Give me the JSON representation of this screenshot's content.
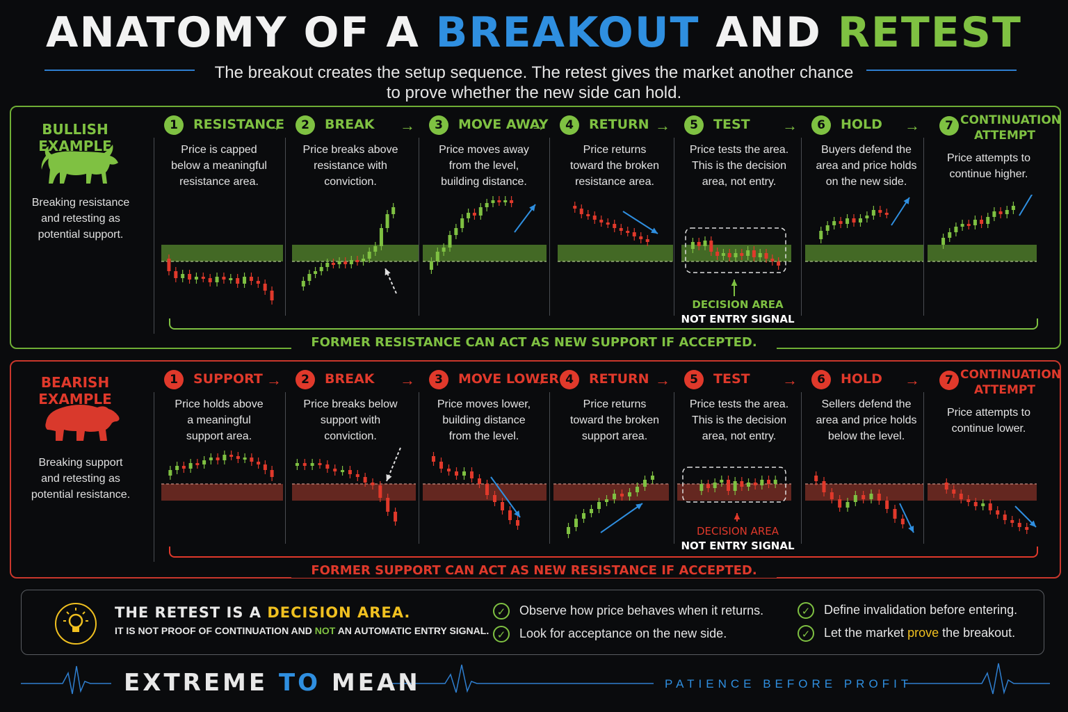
{
  "title": {
    "part1": "ANATOMY OF A ",
    "part2": "BREAKOUT",
    "part3": " AND ",
    "part4": "RETEST"
  },
  "subtitle": {
    "line1": "The breakout creates the setup sequence. The retest gives the market another chance",
    "line2": "to prove whether the new side can hold."
  },
  "colors": {
    "bull": "#7fc142",
    "bear": "#e0392b",
    "accent": "#2f8fe0",
    "highlight": "#f0c020"
  },
  "bullish": {
    "label": "BULLISH EXAMPLE",
    "icon": "bull-icon",
    "desc": [
      "Breaking resistance",
      "and retesting as",
      "potential support."
    ],
    "stages": [
      {
        "num": "1",
        "name": "RESISTANCE",
        "desc": [
          "Price is capped",
          "below a meaningful",
          "resistance area."
        ]
      },
      {
        "num": "2",
        "name": "BREAK",
        "desc": [
          "Price breaks above",
          "resistance with",
          "conviction."
        ]
      },
      {
        "num": "3",
        "name": "MOVE AWAY",
        "desc": [
          "Price moves away",
          "from the level,",
          "building distance."
        ]
      },
      {
        "num": "4",
        "name": "RETURN",
        "desc": [
          "Price returns",
          "toward the broken",
          "resistance area."
        ]
      },
      {
        "num": "5",
        "name": "TEST",
        "desc": [
          "Price tests the area.",
          "This is the decision",
          "area, not entry."
        ]
      },
      {
        "num": "6",
        "name": "HOLD",
        "desc": [
          "Buyers defend the",
          "area and price holds",
          "on the new side."
        ]
      },
      {
        "num": "7",
        "name": "CONTINUATION ATTEMPT",
        "desc": [
          "Price attempts to",
          "continue higher."
        ]
      }
    ],
    "zone_label": [
      "DECISION AREA",
      "NOT ENTRY SIGNAL"
    ],
    "footer": "FORMER RESISTANCE CAN ACT AS NEW SUPPORT IF ACCEPTED."
  },
  "bearish": {
    "label": "BEARISH EXAMPLE",
    "icon": "bear-icon",
    "desc": [
      "Breaking support",
      "and retesting as",
      "potential resistance."
    ],
    "stages": [
      {
        "num": "1",
        "name": "SUPPORT",
        "desc": [
          "Price holds above",
          "a meaningful",
          "support area."
        ]
      },
      {
        "num": "2",
        "name": "BREAK",
        "desc": [
          "Price breaks below",
          "support with",
          "conviction."
        ]
      },
      {
        "num": "3",
        "name": "MOVE LOWER",
        "desc": [
          "Price moves lower,",
          "building distance",
          "from the level."
        ]
      },
      {
        "num": "4",
        "name": "RETURN",
        "desc": [
          "Price returns",
          "toward the broken",
          "support area."
        ]
      },
      {
        "num": "5",
        "name": "TEST",
        "desc": [
          "Price tests the area.",
          "This is the decision",
          "area, not entry."
        ]
      },
      {
        "num": "6",
        "name": "HOLD",
        "desc": [
          "Sellers defend the",
          "area and price holds",
          "below the level."
        ]
      },
      {
        "num": "7",
        "name": "CONTINUATION ATTEMPT",
        "desc": [
          "Price attempts to",
          "continue lower."
        ]
      }
    ],
    "zone_label": [
      "DECISION AREA",
      "NOT ENTRY SIGNAL"
    ],
    "footer": "FORMER SUPPORT CAN ACT AS NEW RESISTANCE IF ACCEPTED."
  },
  "retest": {
    "icon": "lightbulb-icon",
    "title_a": "THE RETEST IS A ",
    "title_b": "DECISION AREA.",
    "sub_a": "IT IS NOT PROOF OF CONTINUATION AND ",
    "sub_b": "NOT",
    "sub_c": " AN AUTOMATIC ENTRY SIGNAL.",
    "checks": [
      {
        "text": "Observe how price behaves when it returns."
      },
      {
        "text": "Look for acceptance on the new side."
      },
      {
        "text": "Define invalidation before entering."
      },
      {
        "text_a": "Let the market ",
        "text_b": "prove",
        "text_c": " the breakout."
      }
    ]
  },
  "brand": {
    "a": "EXTREME ",
    "b": "TO",
    "c": " MEAN"
  },
  "tagline": "PATIENCE BEFORE PROFIT"
}
